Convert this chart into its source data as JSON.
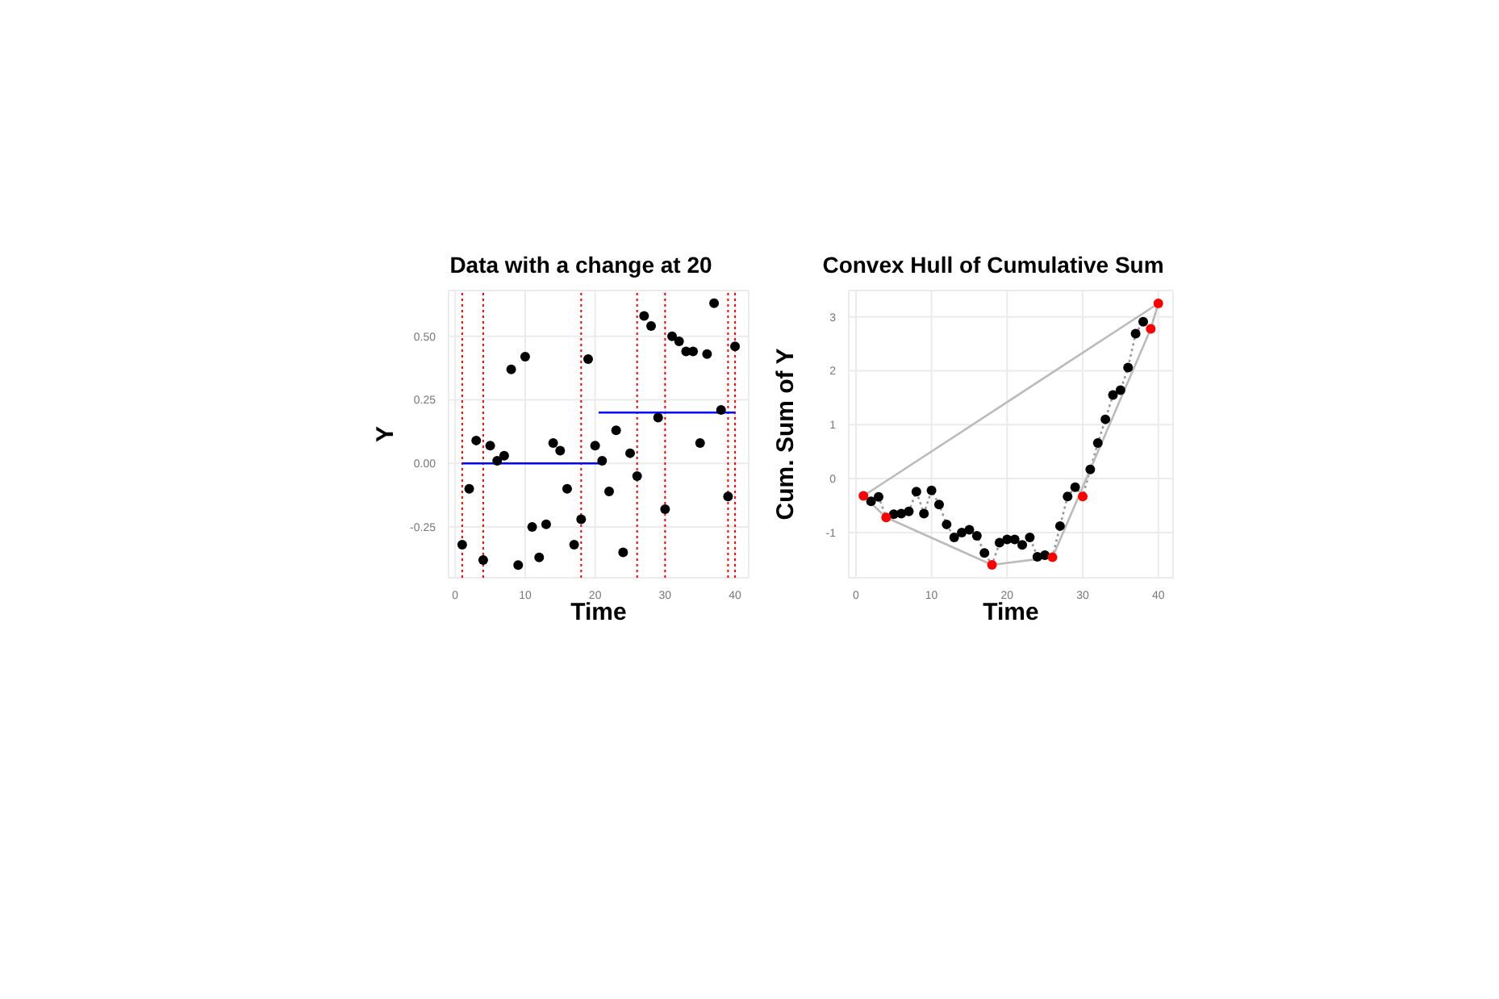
{
  "chart_data": [
    {
      "type": "scatter",
      "title": "Data with a change at 20",
      "xlabel": "Time",
      "ylabel": "Y",
      "xlim": [
        -0.95,
        41.95
      ],
      "ylim": [
        -0.45,
        0.68
      ],
      "xticks": [
        0,
        10,
        20,
        30,
        40
      ],
      "yticks": [
        -0.25,
        {
          "value": 0,
          "label": "0.00"
        },
        0.25,
        {
          "value": 0.5,
          "label": "0.50"
        }
      ],
      "grid": true,
      "x": [
        1,
        2,
        3,
        4,
        5,
        6,
        7,
        8,
        9,
        10,
        11,
        12,
        13,
        14,
        15,
        16,
        17,
        18,
        19,
        20,
        21,
        22,
        23,
        24,
        25,
        26,
        27,
        28,
        29,
        30,
        31,
        32,
        33,
        34,
        35,
        36,
        37,
        38,
        39,
        40
      ],
      "series": [
        {
          "color": "#000000",
          "marker": "circle",
          "values": [
            -0.32,
            -0.1,
            0.09,
            -0.38,
            0.07,
            0.01,
            0.03,
            0.37,
            -0.4,
            0.42,
            -0.25,
            -0.37,
            -0.24,
            0.08,
            0.05,
            -0.1,
            -0.32,
            -0.22,
            0.41,
            0.07,
            0.01,
            -0.11,
            0.13,
            -0.35,
            0.04,
            -0.05,
            0.58,
            0.54,
            0.18,
            -0.18,
            0.5,
            0.48,
            0.44,
            0.44,
            0.08,
            0.43,
            0.63,
            0.21,
            -0.13,
            0.46
          ]
        },
        {
          "type": "line",
          "color": "#0000ff",
          "line_style": "solid",
          "marker": "none",
          "x": [
            1,
            20.5
          ],
          "values": [
            0,
            0
          ]
        },
        {
          "type": "line",
          "color": "#0000ff",
          "line_style": "solid",
          "marker": "none",
          "x": [
            20.5,
            40
          ],
          "values": [
            0.2,
            0.2
          ]
        }
      ],
      "ref_lines": [
        {
          "axis": "x",
          "value": 1,
          "color": "#ff0000",
          "line_style": "dotted"
        },
        {
          "axis": "x",
          "value": 4,
          "color": "#ff0000",
          "line_style": "dotted"
        },
        {
          "axis": "x",
          "value": 18,
          "color": "#ff0000",
          "line_style": "dotted"
        },
        {
          "axis": "x",
          "value": 26,
          "color": "#ff0000",
          "line_style": "dotted"
        },
        {
          "axis": "x",
          "value": 30,
          "color": "#ff0000",
          "line_style": "dotted"
        },
        {
          "axis": "x",
          "value": 39,
          "color": "#ff0000",
          "line_style": "dotted"
        },
        {
          "axis": "x",
          "value": 40,
          "color": "#ff0000",
          "line_style": "dotted"
        }
      ]
    },
    {
      "type": "scatter",
      "title": "Convex Hull of Cumulative Sum",
      "xlabel": "Time",
      "ylabel": "Cum. Sum of Y",
      "xlim": [
        -0.95,
        41.95
      ],
      "ylim": [
        -1.84,
        3.49
      ],
      "xticks": [
        0,
        10,
        20,
        30,
        40
      ],
      "yticks": [
        -1,
        0,
        1,
        2,
        3
      ],
      "grid": true,
      "x": [
        1,
        2,
        3,
        4,
        5,
        6,
        7,
        8,
        9,
        10,
        11,
        12,
        13,
        14,
        15,
        16,
        17,
        18,
        19,
        20,
        21,
        22,
        23,
        24,
        25,
        26,
        27,
        28,
        29,
        30,
        31,
        32,
        33,
        34,
        35,
        36,
        37,
        38,
        39,
        40
      ],
      "series": [
        {
          "type": "line",
          "color": "#999999",
          "line_style": "dotted",
          "marker": "none",
          "values": [
            -0.32,
            -0.42,
            -0.34,
            -0.72,
            -0.66,
            -0.65,
            -0.61,
            -0.24,
            -0.65,
            -0.22,
            -0.48,
            -0.85,
            -1.09,
            -1.0,
            -0.95,
            -1.06,
            -1.38,
            -1.6,
            -1.19,
            -1.13,
            -1.13,
            -1.23,
            -1.09,
            -1.45,
            -1.42,
            -1.46,
            -0.88,
            -0.33,
            -0.16,
            -0.33,
            0.17,
            0.66,
            1.1,
            1.55,
            1.64,
            2.06,
            2.69,
            2.91,
            2.78,
            3.25
          ]
        },
        {
          "type": "line",
          "color": "#bbbbbb",
          "line_style": "solid",
          "marker": "none",
          "x": [
            1,
            4,
            18,
            26,
            39,
            40
          ],
          "values": [
            -0.32,
            -0.72,
            -1.6,
            -1.46,
            2.78,
            3.25
          ]
        },
        {
          "type": "line",
          "color": "#bbbbbb",
          "line_style": "solid",
          "marker": "none",
          "x": [
            1,
            40
          ],
          "values": [
            -0.32,
            3.25
          ]
        },
        {
          "color": "#000000",
          "marker": "circle",
          "values": [
            null,
            -0.42,
            -0.34,
            null,
            -0.66,
            -0.65,
            -0.61,
            -0.24,
            -0.65,
            -0.22,
            -0.48,
            -0.85,
            -1.09,
            -1.0,
            -0.95,
            -1.06,
            -1.38,
            null,
            -1.19,
            -1.13,
            -1.13,
            -1.23,
            -1.09,
            -1.45,
            -1.42,
            null,
            -0.88,
            -0.33,
            -0.16,
            null,
            0.17,
            0.66,
            1.1,
            1.55,
            1.64,
            2.06,
            2.69,
            2.91,
            null,
            null
          ]
        },
        {
          "color": "#ff0000",
          "marker": "circle",
          "x": [
            1,
            4,
            18,
            26,
            30,
            39,
            40
          ],
          "values": [
            -0.32,
            -0.72,
            -1.6,
            -1.46,
            -0.33,
            2.78,
            3.25
          ]
        }
      ]
    }
  ]
}
